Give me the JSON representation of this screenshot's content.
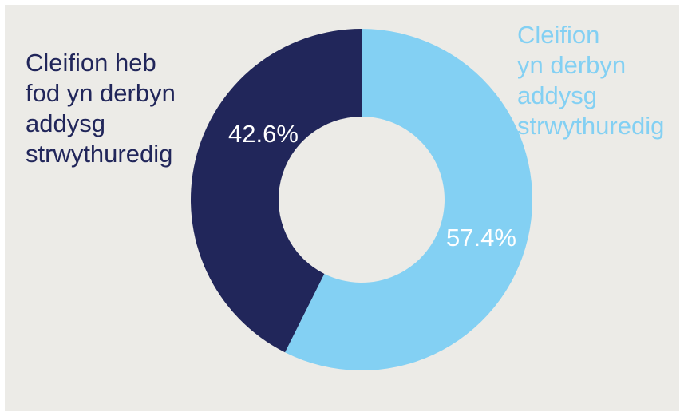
{
  "chart_data": {
    "type": "pie",
    "donut": true,
    "series": [
      {
        "name": "Cleifion yn derbyn\naddysg strwythuredig",
        "label_lines": [
          "Cleifion",
          "yn derbyn",
          "addysg",
          "strwythuredig"
        ],
        "value": 57.4,
        "value_label": "57.4%",
        "color": "#83d0f3"
      },
      {
        "name": "Cleifion heb fod yn derbyn addysg strwythuredig",
        "label_lines": [
          "Cleifion heb",
          "fod yn derbyn",
          "addysg",
          "strwythuredig"
        ],
        "value": 42.6,
        "value_label": "42.6%",
        "color": "#21265a"
      }
    ],
    "start": "12 o'clock",
    "direction": "clockwise",
    "background": "#ecebe7"
  }
}
